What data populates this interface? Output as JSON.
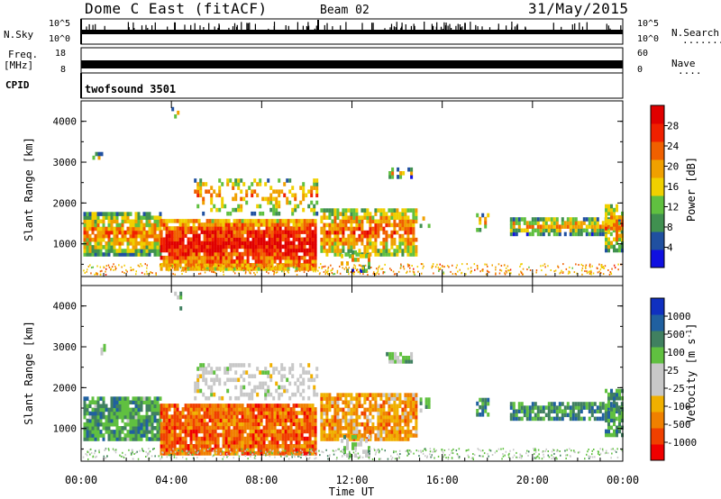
{
  "header": {
    "title": "Dome C East (fitACF)",
    "beam": "Beam 02",
    "date": "31/May/2015"
  },
  "nsky_panel": {
    "left_label": "N.Sky",
    "left_ticks": [
      "10^5",
      "10^0"
    ],
    "right_label": "N.Search",
    "right_ticks": [
      "10^5",
      "10^0"
    ],
    "right_dots": "........"
  },
  "freq_panel": {
    "left_label_1": "Freq.",
    "left_label_2": "[MHz]",
    "left_ticks": [
      "18",
      "8"
    ],
    "right_label": "Nave",
    "right_ticks": [
      "60",
      "0"
    ],
    "right_dots": "...."
  },
  "cpid_panel": {
    "label": "CPID",
    "value": "twofsound 3501"
  },
  "x_axis": {
    "ticks": [
      "00:00",
      "04:00",
      "08:00",
      "12:00",
      "16:00",
      "20:00",
      "00:00"
    ],
    "label": "Time UT"
  },
  "colors": {
    "power_scale": [
      "#1010e0",
      "#2050a0",
      "#409050",
      "#60c040",
      "#f0d000",
      "#f0a000",
      "#f06000",
      "#f02000",
      "#e00000"
    ],
    "velocity_scale": [
      "#f00000",
      "#f04000",
      "#f08000",
      "#f0b000",
      "#c8c8c8",
      "#c8c8c8",
      "#60c040",
      "#408060",
      "#2060a0",
      "#1030c0"
    ]
  },
  "chart_data": [
    {
      "type": "heatmap",
      "name": "power",
      "ylabel": "Slant Range [km]",
      "yticks": [
        "4000",
        "3000",
        "2000",
        "1000"
      ],
      "ylim": [
        200,
        4500
      ],
      "xlim_hours": [
        0,
        24
      ],
      "colorbar_label": "Power [dB]",
      "colorbar_ticks": [
        "28",
        "24",
        "20",
        "16",
        "12",
        "8",
        "4"
      ],
      "clim": [
        0,
        32
      ]
    },
    {
      "type": "heatmap",
      "name": "velocity",
      "ylabel": "Slant Range [km]",
      "yticks": [
        "4000",
        "3000",
        "2000",
        "1000"
      ],
      "ylim": [
        200,
        4500
      ],
      "xlim_hours": [
        0,
        24
      ],
      "colorbar_label": "Velocity [m s^-1]",
      "colorbar_ticks": [
        "1000",
        "500",
        "100",
        "25",
        "-25",
        "-100",
        "-500",
        "-1000"
      ]
    }
  ]
}
